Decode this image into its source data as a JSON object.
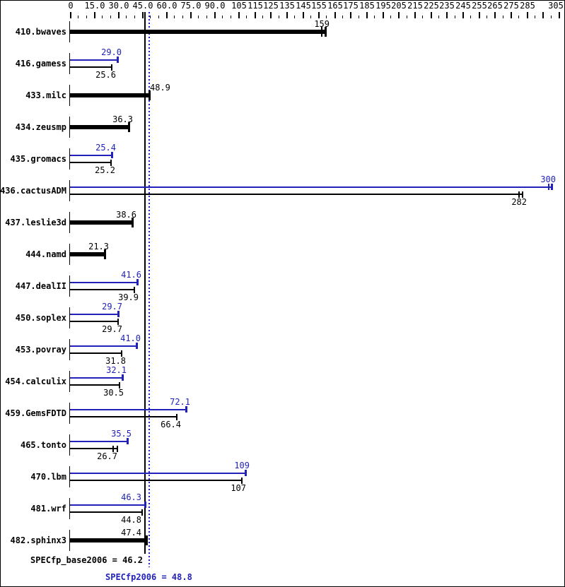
{
  "colors": {
    "base": "#000000",
    "peak": "#2222bb",
    "peak_mean_line": "#2222cc",
    "background": "#ffffff"
  },
  "chart_data": {
    "type": "bar",
    "orientation": "horizontal",
    "title": "",
    "xlabel": "",
    "ylabel": "",
    "xlim": [
      0,
      305
    ],
    "minor_tick_step": 5,
    "grid": false,
    "axis_labels": [
      {
        "v": 0,
        "t": "0"
      },
      {
        "v": 15,
        "t": "15.0"
      },
      {
        "v": 30,
        "t": "30.0"
      },
      {
        "v": 45,
        "t": "45.0"
      },
      {
        "v": 60,
        "t": "60.0"
      },
      {
        "v": 75,
        "t": "75.0"
      },
      {
        "v": 90,
        "t": "90.0"
      },
      {
        "v": 105,
        "t": "105"
      },
      {
        "v": 115,
        "t": "115"
      },
      {
        "v": 125,
        "t": "125"
      },
      {
        "v": 135,
        "t": "135"
      },
      {
        "v": 145,
        "t": "145"
      },
      {
        "v": 155,
        "t": "155"
      },
      {
        "v": 165,
        "t": "165"
      },
      {
        "v": 175,
        "t": "175"
      },
      {
        "v": 185,
        "t": "185"
      },
      {
        "v": 195,
        "t": "195"
      },
      {
        "v": 205,
        "t": "205"
      },
      {
        "v": 215,
        "t": "215"
      },
      {
        "v": 225,
        "t": "225"
      },
      {
        "v": 235,
        "t": "235"
      },
      {
        "v": 245,
        "t": "245"
      },
      {
        "v": 255,
        "t": "255"
      },
      {
        "v": 265,
        "t": "265"
      },
      {
        "v": 275,
        "t": "275"
      },
      {
        "v": 285,
        "t": "285"
      },
      {
        "v": 305,
        "t": "305"
      }
    ],
    "series_legend": [
      {
        "name": "peak",
        "color": "#2222bb"
      },
      {
        "name": "base",
        "color": "#000000"
      }
    ],
    "benchmarks": [
      {
        "name": "410.bwaves",
        "base": 159,
        "base_text": "159",
        "base_tick2_dx": -5
      },
      {
        "name": "416.gamess",
        "peak": 29.0,
        "peak_text": "29.0",
        "base": 25.6,
        "base_text": "25.6"
      },
      {
        "name": "433.milc",
        "base": 48.9,
        "base_text": "48.9",
        "base_label_mode": "after-line"
      },
      {
        "name": "434.zeusmp",
        "base": 36.3,
        "base_text": "36.3"
      },
      {
        "name": "435.gromacs",
        "peak": 25.4,
        "peak_text": "25.4",
        "base": 25.2,
        "base_text": "25.2"
      },
      {
        "name": "436.cactusADM",
        "peak": 300,
        "peak_text": "300",
        "base": 282,
        "base_text": "282",
        "base_tick2_dx": -5,
        "peak_tick2_dx": -4
      },
      {
        "name": "437.leslie3d",
        "base": 38.6,
        "base_text": "38.6"
      },
      {
        "name": "444.namd",
        "base": 21.3,
        "base_text": "21.3"
      },
      {
        "name": "447.dealII",
        "peak": 41.6,
        "peak_text": "41.6",
        "base": 39.9,
        "base_text": "39.9"
      },
      {
        "name": "450.soplex",
        "peak": 29.7,
        "peak_text": "29.7",
        "base": 29.7,
        "base_text": "29.7"
      },
      {
        "name": "453.povray",
        "peak": 41.0,
        "peak_text": "41.0",
        "base": 31.8,
        "base_text": "31.8"
      },
      {
        "name": "454.calculix",
        "peak": 32.1,
        "peak_text": "32.1",
        "base": 30.5,
        "base_text": "30.5"
      },
      {
        "name": "459.GemsFDTD",
        "peak": 72.1,
        "peak_text": "72.1",
        "base": 66.4,
        "base_text": "66.4"
      },
      {
        "name": "465.tonto",
        "peak": 35.5,
        "peak_text": "35.5",
        "base": 26.7,
        "base_text": "26.7",
        "base_tick2_dx": 6
      },
      {
        "name": "470.lbm",
        "peak": 109,
        "peak_text": "109",
        "base": 107,
        "base_text": "107"
      },
      {
        "name": "481.wrf",
        "peak": 46.3,
        "peak_text": "46.3",
        "base": 44.8,
        "base_text": "44.8",
        "peak_label_mode": "before-line",
        "base_label_mode": "before-line"
      },
      {
        "name": "482.sphinx3",
        "base": 47.4,
        "base_text": "47.4",
        "base_label_mode": "before-line"
      }
    ],
    "means": {
      "base": 46.2,
      "base_text": "SPECfp_base2006 = 46.2",
      "peak": 48.8,
      "peak_text": "SPECfp2006 = 48.8"
    }
  }
}
